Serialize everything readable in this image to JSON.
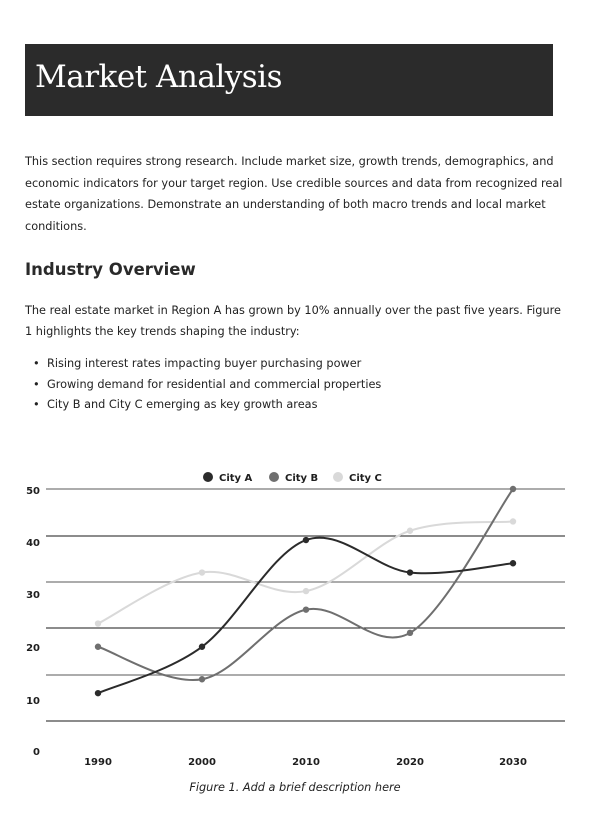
{
  "header": {
    "title": "Market Analysis"
  },
  "intro": {
    "text": "This section requires strong research. Include market size, growth trends, demographics, and economic indicators for your target region. Use credible sources and data from recognized real estate organizations. Demonstrate an understanding of both macro trends and local market conditions."
  },
  "section": {
    "heading": "Industry Overview",
    "paragraph": "The real estate market in Region A has grown by 10% annually over the past five years. Figure 1 highlights the key trends shaping the industry:",
    "bullets": [
      "Rising interest rates impacting buyer purchasing power",
      "Growing demand for residential and commercial properties",
      "City B and City C emerging as key growth areas"
    ]
  },
  "figure": {
    "caption": "Figure 1. Add a brief description here"
  },
  "chart_data": {
    "type": "line",
    "x": [
      "1990",
      "2000",
      "2010",
      "2020",
      "2030"
    ],
    "yticks": [
      "0",
      "10",
      "20",
      "30",
      "40",
      "50"
    ],
    "ylim": [
      0,
      50
    ],
    "legend_position": "top-center",
    "grid": true,
    "series": [
      {
        "name": "City A",
        "color": "#2b2b2b",
        "values": [
          6,
          16,
          39,
          32,
          34
        ]
      },
      {
        "name": "City B",
        "color": "#6f6f6f",
        "values": [
          16,
          9,
          24,
          19,
          50
        ]
      },
      {
        "name": "City C",
        "color": "#d9d9d9",
        "values": [
          21,
          32,
          28,
          41,
          43
        ]
      }
    ]
  }
}
